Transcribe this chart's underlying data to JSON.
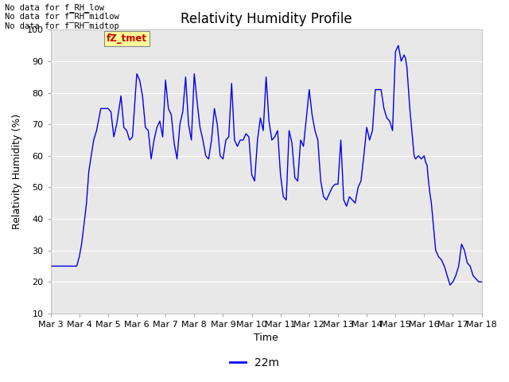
{
  "title": "Relativity Humidity Profile",
  "ylabel": "Relativity Humidity (%)",
  "xlabel": "Time",
  "ylim": [
    10,
    100
  ],
  "yticks": [
    10,
    20,
    30,
    40,
    50,
    60,
    70,
    80,
    90,
    100
  ],
  "xtick_labels": [
    "Mar 3",
    "Mar 4",
    "Mar 5",
    "Mar 6",
    "Mar 7",
    "Mar 8",
    "Mar 9",
    "Mar 10",
    "Mar 11",
    "Mar 12",
    "Mar 13",
    "Mar 14",
    "Mar 15",
    "Mar 16",
    "Mar 17",
    "Mar 18"
  ],
  "line_color": "#0000ee",
  "line_label": "22m",
  "bg_color": "#e8e8e8",
  "fig_color": "#ffffff",
  "no_data_texts": [
    "No data for f_RH_low",
    "No data for f̅RH̅midlow",
    "No data for f̅RH̅midtop"
  ],
  "annotation_text": "fZ_tmet",
  "annotation_color": "#cc0000",
  "annotation_bg": "#ffff99",
  "x_values": [
    0.0,
    0.08,
    0.16,
    0.25,
    0.33,
    0.41,
    0.5,
    0.58,
    0.66,
    0.75,
    0.83,
    0.91,
    1.0,
    1.08,
    1.16,
    1.25,
    1.33,
    1.5,
    1.6,
    1.75,
    2.0,
    2.1,
    2.2,
    2.3,
    2.45,
    2.55,
    2.65,
    2.75,
    2.85,
    3.0,
    3.1,
    3.2,
    3.3,
    3.4,
    3.5,
    3.6,
    3.7,
    3.8,
    3.9,
    4.0,
    4.1,
    4.2,
    4.3,
    4.4,
    4.5,
    4.6,
    4.7,
    4.8,
    4.9,
    5.0,
    5.1,
    5.2,
    5.3,
    5.4,
    5.5,
    5.6,
    5.7,
    5.8,
    5.9,
    6.0,
    6.1,
    6.2,
    6.3,
    6.4,
    6.5,
    6.6,
    6.7,
    6.8,
    6.9,
    7.0,
    7.1,
    7.2,
    7.3,
    7.4,
    7.5,
    7.6,
    7.7,
    7.8,
    7.9,
    8.0,
    8.1,
    8.2,
    8.3,
    8.4,
    8.5,
    8.6,
    8.7,
    8.8,
    8.9,
    9.0,
    9.1,
    9.2,
    9.3,
    9.4,
    9.5,
    9.6,
    9.7,
    9.8,
    9.9,
    10.0,
    10.1,
    10.2,
    10.3,
    10.4,
    10.5,
    10.6,
    10.7,
    10.8,
    10.9,
    11.0,
    11.1,
    11.2,
    11.3,
    11.4,
    11.5,
    11.6,
    11.7,
    11.8,
    11.9,
    12.0,
    12.1,
    12.2,
    12.3,
    12.35,
    12.4,
    12.5,
    12.55,
    12.6,
    12.65,
    12.7,
    12.8,
    12.9,
    13.0,
    13.05,
    13.1,
    13.15,
    13.2,
    13.25,
    13.3,
    13.35,
    13.4,
    13.5,
    13.6,
    13.7,
    13.8,
    13.9,
    14.0,
    14.1,
    14.2,
    14.3,
    14.4,
    14.5,
    14.6,
    14.7,
    14.8,
    14.9,
    15.0
  ],
  "y_values": [
    25,
    25,
    25,
    25,
    25,
    25,
    25,
    25,
    25,
    25,
    25,
    25,
    28,
    32,
    38,
    45,
    55,
    65,
    68,
    75,
    75,
    74,
    66,
    70,
    79,
    69,
    68,
    65,
    66,
    86,
    84,
    79,
    69,
    68,
    59,
    65,
    69,
    71,
    66,
    84,
    75,
    73,
    64,
    59,
    70,
    74,
    85,
    70,
    65,
    86,
    77,
    69,
    65,
    60,
    59,
    65,
    75,
    70,
    60,
    59,
    65,
    66,
    83,
    65,
    63,
    65,
    65,
    67,
    66,
    54,
    52,
    65,
    72,
    68,
    85,
    71,
    65,
    66,
    68,
    54,
    47,
    46,
    68,
    64,
    53,
    52,
    65,
    63,
    72,
    81,
    73,
    68,
    65,
    52,
    47,
    46,
    48,
    50,
    51,
    51,
    65,
    46,
    44,
    47,
    46,
    45,
    50,
    52,
    60,
    69,
    65,
    68,
    81,
    81,
    81,
    75,
    72,
    71,
    68,
    93,
    95,
    90,
    92,
    91,
    88,
    75,
    70,
    65,
    60,
    59,
    60,
    59,
    60,
    58,
    57,
    52,
    48,
    45,
    40,
    35,
    30,
    28,
    27,
    25,
    22,
    19,
    20,
    22,
    25,
    32,
    30,
    26,
    25,
    22,
    21,
    20,
    20
  ]
}
